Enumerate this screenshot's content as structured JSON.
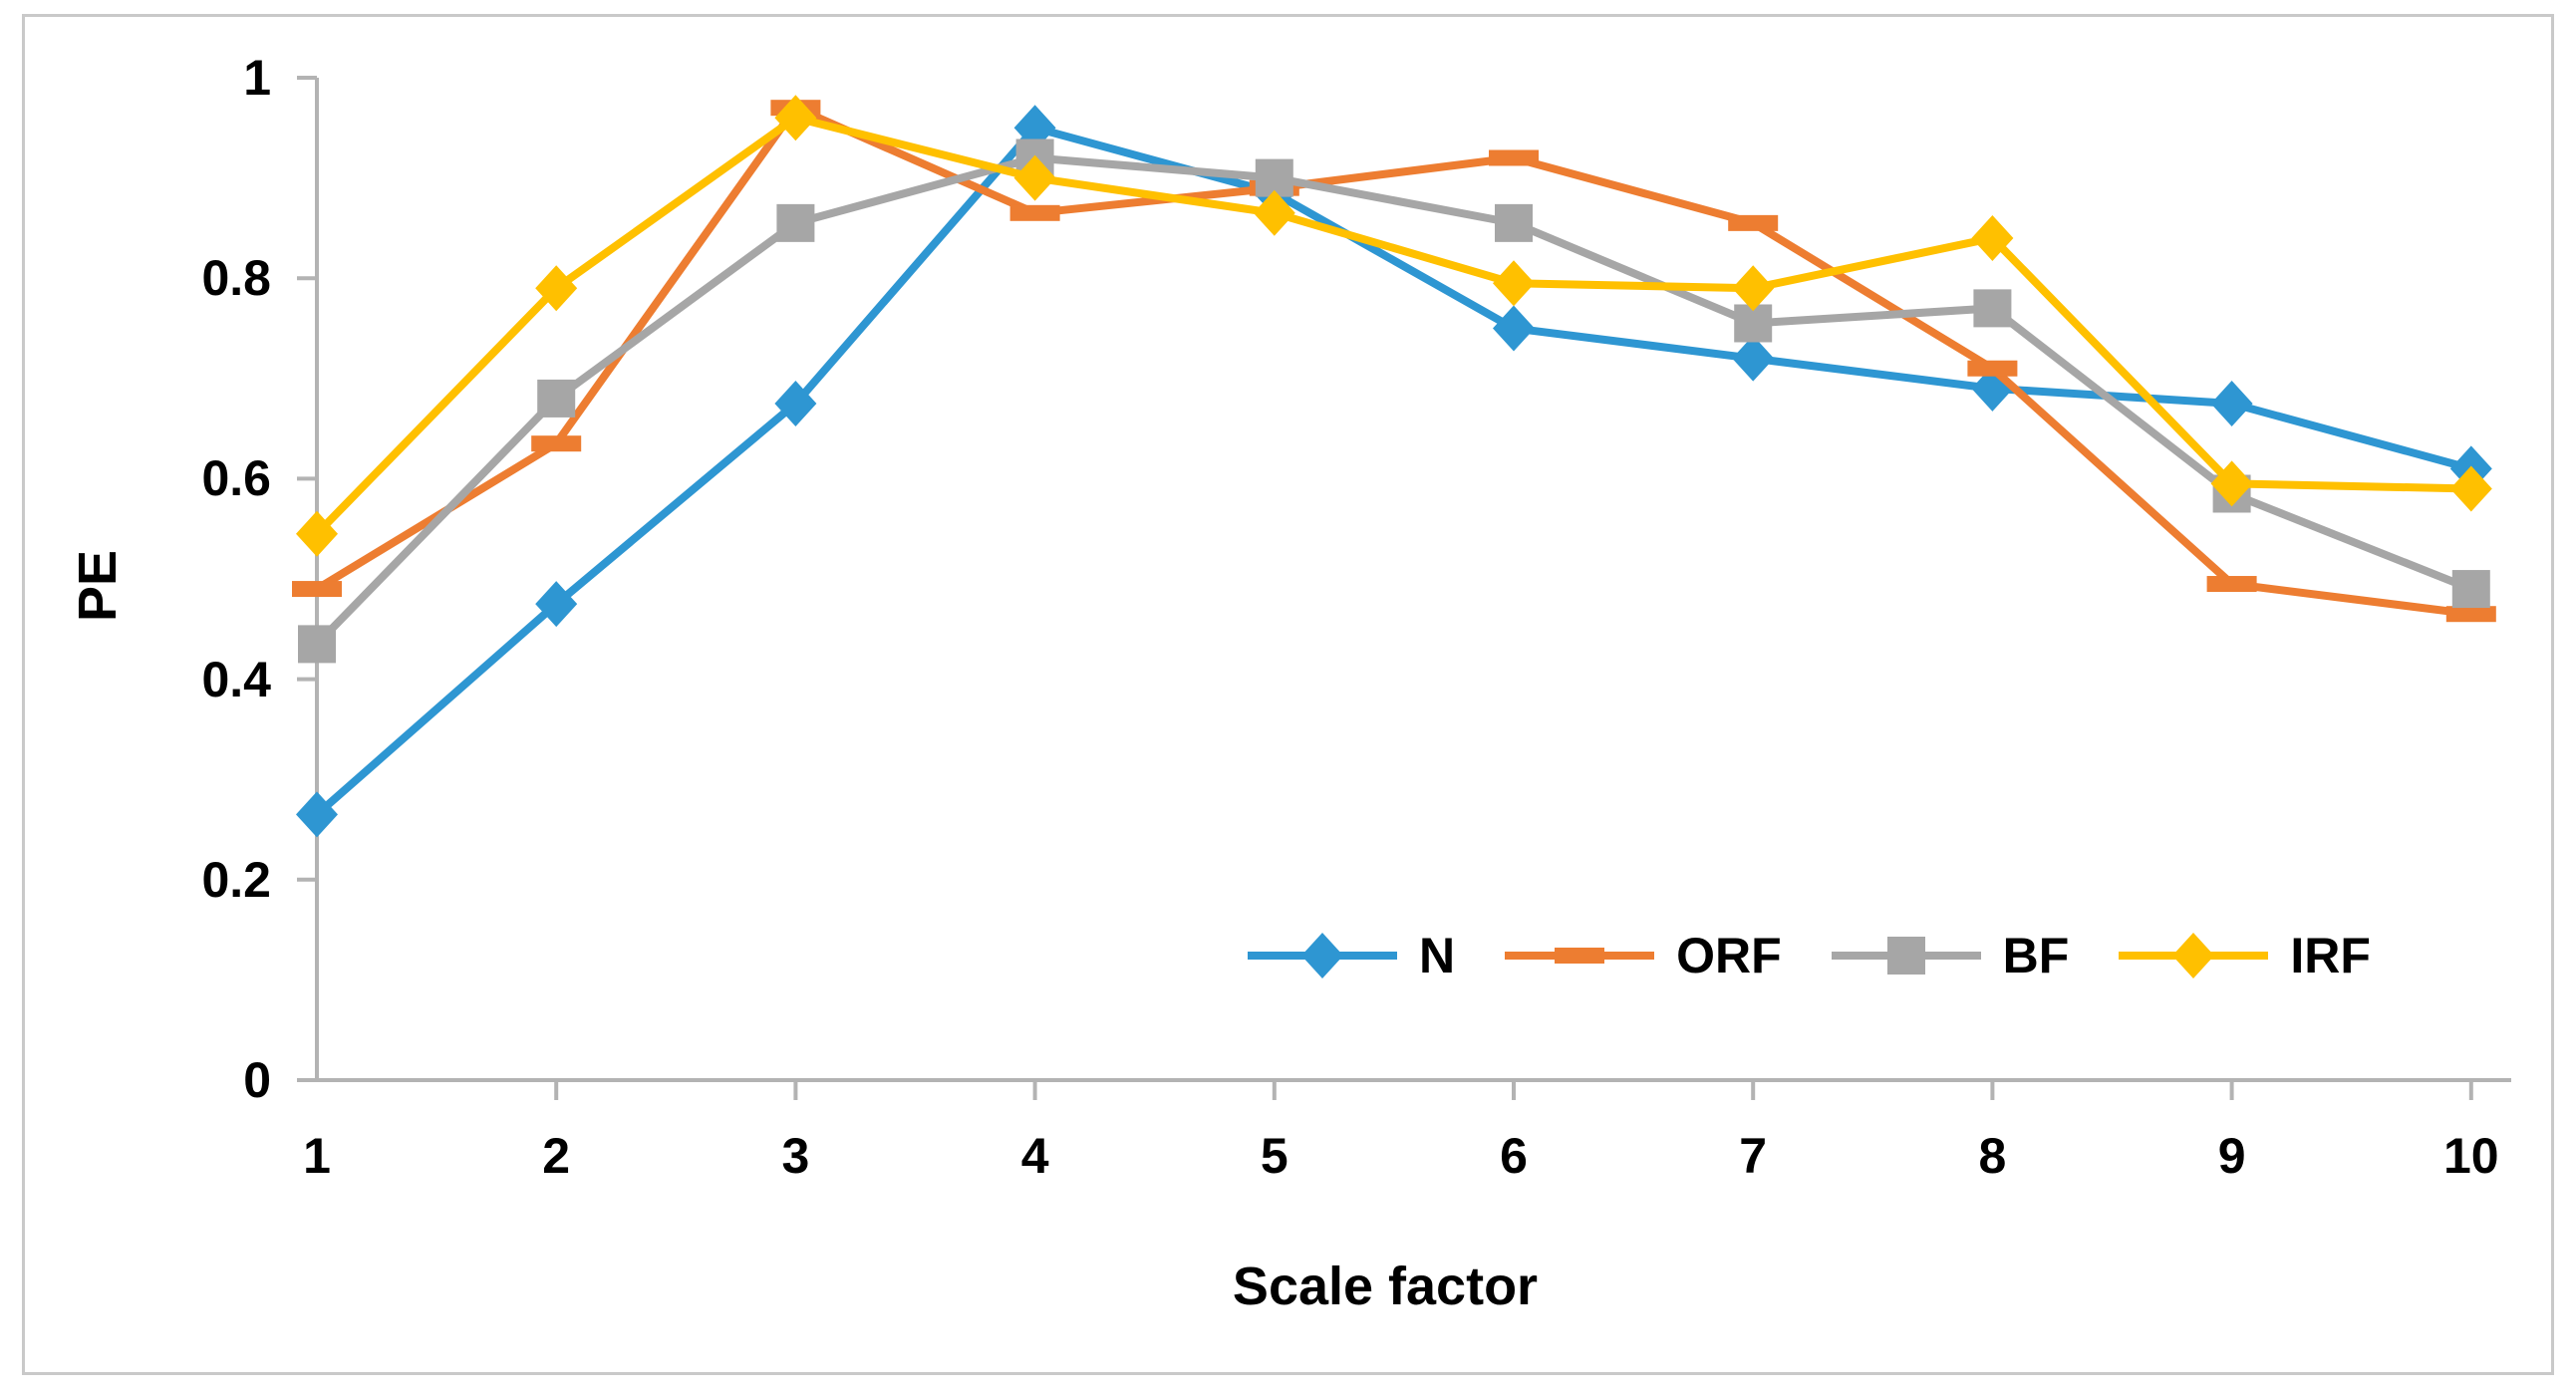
{
  "figure": {
    "background_color": "#FFFFFF",
    "border_color": "#C9C9C9"
  },
  "chart_data": {
    "type": "line",
    "title": "",
    "xlabel": "Scale factor",
    "ylabel": "PE",
    "categories": [
      "1",
      "2",
      "3",
      "4",
      "5",
      "6",
      "7",
      "8",
      "9",
      "10"
    ],
    "x_values": [
      1,
      2,
      3,
      4,
      5,
      6,
      7,
      8,
      9,
      10
    ],
    "ylim": [
      0,
      1
    ],
    "y_ticks": [
      "1",
      "0.8",
      "0.6",
      "0.4",
      "0.2",
      "0"
    ],
    "y_tick_values": [
      1,
      0.8,
      0.6,
      0.4,
      0.2,
      0
    ],
    "grid": false,
    "legend_position": "inside-bottom-right",
    "axis_color": "#B3B3B3",
    "series": [
      {
        "name": "N",
        "color": "#2E96D2",
        "marker": "diamond",
        "values": [
          0.265,
          0.475,
          0.675,
          0.95,
          0.885,
          0.75,
          0.72,
          0.69,
          0.675,
          0.61
        ]
      },
      {
        "name": "ORF",
        "color": "#ED7D31",
        "marker": "dash",
        "values": [
          0.49,
          0.635,
          0.97,
          0.865,
          0.89,
          0.92,
          0.855,
          0.71,
          0.495,
          0.465
        ]
      },
      {
        "name": "BF",
        "color": "#A6A6A6",
        "marker": "square",
        "values": [
          0.435,
          0.68,
          0.855,
          0.92,
          0.9,
          0.855,
          0.755,
          0.77,
          0.585,
          0.49
        ]
      },
      {
        "name": "IRF",
        "color": "#FFC000",
        "marker": "diamond",
        "values": [
          0.545,
          0.79,
          0.96,
          0.9,
          0.865,
          0.795,
          0.79,
          0.84,
          0.595,
          0.59
        ]
      }
    ]
  }
}
